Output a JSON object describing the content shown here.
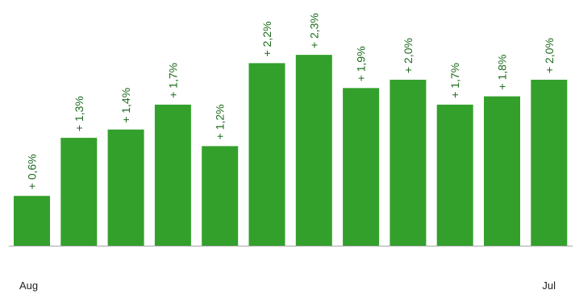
{
  "chart_data": {
    "type": "bar",
    "categories": [
      "Aug",
      "",
      "",
      "",
      "",
      "",
      "",
      "",
      "",
      "",
      "",
      "Jul"
    ],
    "values": [
      0.6,
      1.3,
      1.4,
      1.7,
      1.2,
      2.2,
      2.3,
      1.9,
      2.0,
      1.7,
      1.8,
      2.0
    ],
    "data_labels": [
      "+ 0,6%",
      "+ 1,3%",
      "+ 1,4%",
      "+ 1,7%",
      "+ 1,2%",
      "+ 2,2%",
      "+ 2,3%",
      "+ 1,9%",
      "+ 2,0%",
      "+ 1,7%",
      "+ 1,8%",
      "+ 2,0%"
    ],
    "x_tick_labels": {
      "first": "Aug",
      "last": "Jul"
    },
    "title": "",
    "xlabel": "",
    "ylabel": "",
    "ylim": [
      0,
      2.6
    ],
    "grid": false,
    "legend": "none",
    "colors": {
      "bar": "#34a02c",
      "label": "#1f6b1f",
      "axis": "#a6a6a6"
    }
  }
}
